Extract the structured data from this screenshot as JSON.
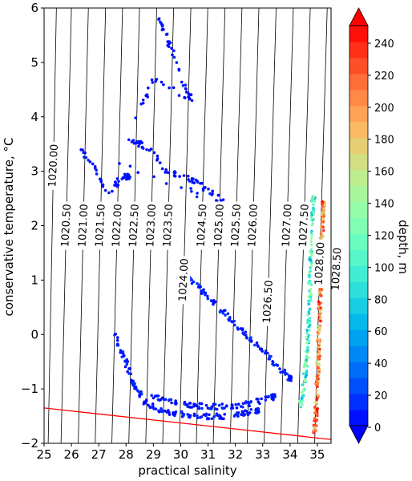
{
  "chart_data": {
    "type": "scatter",
    "xlabel": "practical salinity",
    "ylabel": "conservative temperature, °C",
    "xlim": [
      25,
      35.5
    ],
    "ylim": [
      -2,
      6
    ],
    "x_ticks": [
      "25",
      "26",
      "27",
      "28",
      "29",
      "30",
      "31",
      "32",
      "33",
      "34",
      "35"
    ],
    "y_ticks": [
      "−2",
      "−1",
      "0",
      "1",
      "2",
      "3",
      "4",
      "5",
      "6"
    ],
    "colorbar": {
      "label": "depth, m",
      "range": [
        0,
        250
      ],
      "ticks": [
        "0",
        "20",
        "40",
        "60",
        "80",
        "100",
        "120",
        "140",
        "160",
        "180",
        "200",
        "220",
        "240"
      ],
      "colormap": "rainbow",
      "extend": "both"
    },
    "freezing_line": {
      "color": "#ff0000",
      "points": [
        [
          25,
          -1.35
        ],
        [
          35.5,
          -1.93
        ]
      ]
    },
    "isopycnals": [
      {
        "label": "1020.00",
        "x0": 25.15,
        "x1": 25.45
      },
      {
        "label": "1020.50",
        "x0": 25.62,
        "x1": 26.0
      },
      {
        "label": "1021.00",
        "x0": 26.25,
        "x1": 26.62
      },
      {
        "label": "1021.50",
        "x0": 26.87,
        "x1": 27.25
      },
      {
        "label": "1022.00",
        "x0": 27.48,
        "x1": 27.87
      },
      {
        "label": "1022.50",
        "x0": 28.1,
        "x1": 28.49
      },
      {
        "label": "1023.00",
        "x0": 28.72,
        "x1": 29.12
      },
      {
        "label": "1023.50",
        "x0": 29.34,
        "x1": 29.74
      },
      {
        "label": "1024.00",
        "x0": 29.95,
        "x1": 30.37
      },
      {
        "label": "1024.50",
        "x0": 30.57,
        "x1": 30.99
      },
      {
        "label": "1025.00",
        "x0": 31.19,
        "x1": 31.62
      },
      {
        "label": "1025.50",
        "x0": 31.81,
        "x1": 32.24
      },
      {
        "label": "1026.00",
        "x0": 32.43,
        "x1": 32.86
      },
      {
        "label": "1026.50",
        "x0": 33.05,
        "x1": 33.49
      },
      {
        "label": "1027.00",
        "x0": 33.66,
        "x1": 34.12
      },
      {
        "label": "1027.50",
        "x0": 34.28,
        "x1": 34.74
      },
      {
        "label": "1028.00",
        "x0": 34.9,
        "x1": 35.36
      },
      {
        "label": "1028.50",
        "x0": 35.52,
        "x1": 35.98
      }
    ],
    "series": [
      {
        "group": "surface-scatter-band-1",
        "depth_range": [
          0,
          15
        ],
        "points": [
          [
            27.6,
            0.0
          ],
          [
            27.8,
            -0.3
          ],
          [
            28.0,
            -0.5
          ],
          [
            28.2,
            -0.8
          ],
          [
            28.4,
            -1.0
          ],
          [
            28.6,
            -1.2
          ],
          [
            28.9,
            -1.3
          ],
          [
            29.3,
            -1.4
          ],
          [
            29.8,
            -1.45
          ],
          [
            30.3,
            -1.48
          ],
          [
            30.8,
            -1.5
          ],
          [
            31.3,
            -1.5
          ],
          [
            31.8,
            -1.5
          ],
          [
            32.3,
            -1.45
          ],
          [
            32.8,
            -1.4
          ]
        ]
      },
      {
        "group": "surface-scatter-band-2",
        "depth_range": [
          0,
          15
        ],
        "points": [
          [
            28.9,
            -1.1
          ],
          [
            29.4,
            -1.2
          ],
          [
            29.9,
            -1.25
          ],
          [
            30.4,
            -1.3
          ],
          [
            30.9,
            -1.32
          ],
          [
            31.4,
            -1.33
          ],
          [
            31.9,
            -1.32
          ],
          [
            32.4,
            -1.28
          ],
          [
            32.9,
            -1.22
          ],
          [
            33.4,
            -1.15
          ]
        ]
      },
      {
        "group": "curved-streak",
        "depth_range": [
          0,
          20
        ],
        "points": [
          [
            30.0,
            1.2
          ],
          [
            30.4,
            1.0
          ],
          [
            30.8,
            0.8
          ],
          [
            31.2,
            0.6
          ],
          [
            31.6,
            0.4
          ],
          [
            32.0,
            0.2
          ],
          [
            32.4,
            0.0
          ],
          [
            32.8,
            -0.2
          ],
          [
            33.2,
            -0.4
          ],
          [
            33.6,
            -0.6
          ],
          [
            34.0,
            -0.8
          ]
        ]
      },
      {
        "group": "upper-scatter",
        "depth_range": [
          0,
          10
        ],
        "points": [
          [
            29.2,
            5.8
          ],
          [
            29.4,
            5.6
          ],
          [
            29.6,
            5.3
          ],
          [
            30.2,
            4.5
          ],
          [
            30.4,
            4.3
          ],
          [
            29.0,
            4.7
          ],
          [
            28.1,
            3.6
          ],
          [
            28.5,
            3.5
          ],
          [
            28.9,
            3.4
          ],
          [
            29.5,
            3.0
          ],
          [
            30.1,
            2.9
          ],
          [
            30.6,
            2.8
          ],
          [
            31.1,
            2.6
          ],
          [
            31.6,
            2.4
          ],
          [
            26.3,
            3.4
          ],
          [
            26.8,
            3.1
          ],
          [
            27.3,
            2.6
          ],
          [
            27.9,
            2.9
          ],
          [
            28.1,
            2.9
          ]
        ]
      },
      {
        "group": "deep-water-column",
        "depth_range": [
          150,
          250
        ],
        "points": [
          [
            34.9,
            -1.8
          ],
          [
            34.95,
            -1.4
          ],
          [
            35.0,
            -1.0
          ],
          [
            35.02,
            -0.6
          ],
          [
            35.05,
            -0.2
          ],
          [
            35.07,
            0.2
          ],
          [
            35.1,
            0.6
          ],
          [
            35.12,
            1.0
          ],
          [
            35.15,
            1.4
          ],
          [
            35.17,
            1.8
          ],
          [
            35.2,
            2.2
          ],
          [
            35.22,
            2.4
          ]
        ]
      },
      {
        "group": "intermediate-branch",
        "depth_range": [
          60,
          150
        ],
        "points": [
          [
            34.4,
            -1.3
          ],
          [
            34.5,
            -0.9
          ],
          [
            34.6,
            -0.5
          ],
          [
            34.65,
            -0.1
          ],
          [
            34.7,
            0.3
          ],
          [
            34.72,
            0.8
          ],
          [
            34.75,
            1.4
          ],
          [
            34.8,
            2.0
          ],
          [
            34.85,
            2.5
          ]
        ]
      }
    ]
  }
}
